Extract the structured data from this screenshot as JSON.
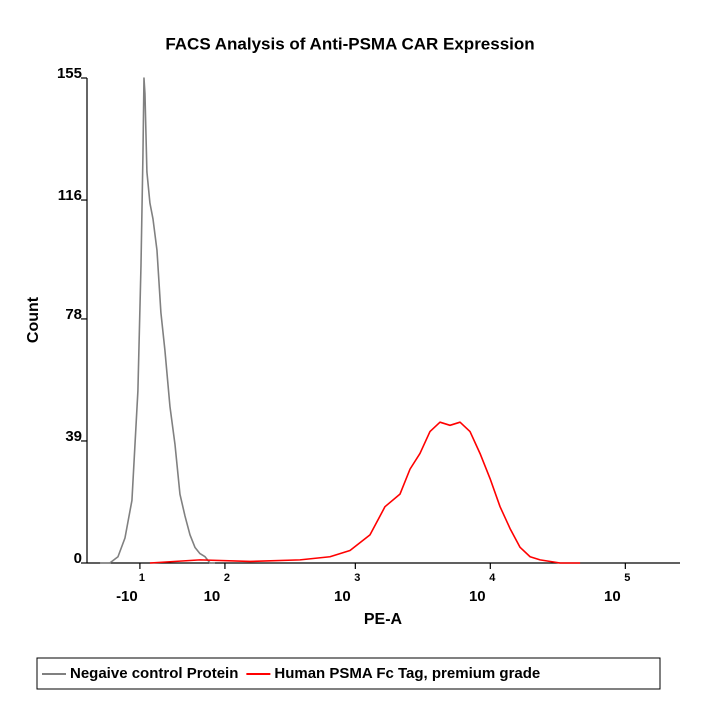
{
  "chart_data": {
    "type": "line",
    "title": "FACS Analysis of Anti-PSMA CAR Expression",
    "x_label": "PE-A",
    "y_label": "Count",
    "xscale": "biexponential",
    "xlim": [
      -77,
      254000
    ],
    "ylim": [
      0,
      155
    ],
    "yticks": [
      0,
      39,
      78,
      116,
      155
    ],
    "xticks": [
      {
        "value": -10,
        "label": "-10",
        "exponent": "1"
      },
      {
        "value": 100,
        "label": "10",
        "exponent": "2"
      },
      {
        "value": 1000,
        "label": "10",
        "exponent": "3"
      },
      {
        "value": 10000,
        "label": "10",
        "exponent": "4"
      },
      {
        "value": 100000,
        "label": "10",
        "exponent": "5"
      }
    ],
    "series": [
      {
        "name": "Negaive control Protein",
        "color": "#808080",
        "x": [
          -57,
          -44,
          -34,
          -26,
          -18.4,
          -12.1,
          -8.9,
          -6.9,
          -5.8,
          -4.8,
          -2.8,
          0.3,
          3.4,
          7.5,
          11.6,
          15.8,
          21.2,
          26.7,
          32.4,
          38.4,
          44.6,
          51.1,
          58,
          65.5,
          73.3,
          81.7
        ],
        "values": [
          0,
          0,
          2,
          8,
          20,
          55,
          95,
          130,
          155,
          150,
          125,
          115,
          110,
          100,
          80,
          68,
          50,
          38,
          22,
          15,
          9,
          5,
          3,
          2,
          0,
          0
        ]
      },
      {
        "name": "Human PSMA Fc Tag, premium grade",
        "color": "#ff0000",
        "x": [
          0.3,
          58,
          161,
          387,
          648,
          913,
          1284,
          1659,
          2142,
          2543,
          3014,
          3574,
          4240,
          5030,
          5969,
          7076,
          8393,
          9954,
          11808,
          14004,
          16615,
          19710,
          23382,
          32880,
          46260
        ],
        "values": [
          0,
          1,
          0.5,
          1,
          2,
          4,
          9,
          18,
          22,
          30,
          35,
          42,
          45,
          44,
          45,
          42,
          35,
          27,
          18,
          11,
          5,
          2,
          1,
          0,
          0
        ]
      }
    ]
  }
}
